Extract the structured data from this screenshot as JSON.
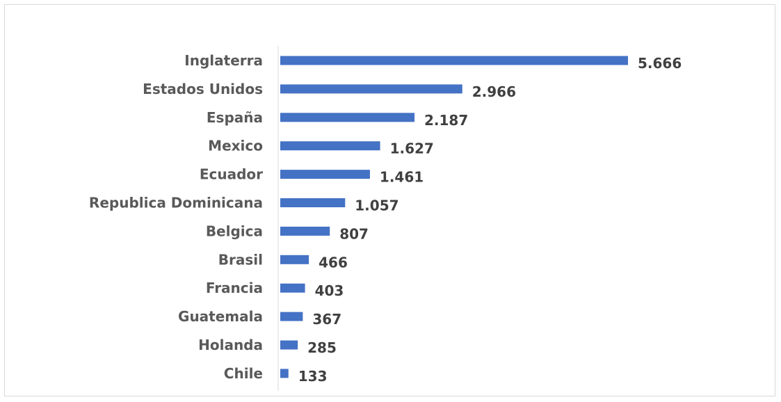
{
  "chart_data": {
    "type": "bar",
    "orientation": "horizontal",
    "title": "",
    "xlabel": "",
    "ylabel": "",
    "categories": [
      "Inglaterra",
      "Estados Unidos",
      "España",
      "Mexico",
      "Ecuador",
      "Republica Dominicana",
      "Belgica",
      "Brasil",
      "Francia",
      "Guatemala",
      "Holanda",
      "Chile"
    ],
    "values": [
      5666,
      2966,
      2187,
      1627,
      1461,
      1057,
      807,
      466,
      403,
      367,
      285,
      133
    ],
    "value_labels": [
      "5.666",
      "2.966",
      "2.187",
      "1.627",
      "1.461",
      "1.057",
      "807",
      "466",
      "403",
      "367",
      "285",
      "133"
    ],
    "xlim": [
      0,
      5666
    ],
    "grid": false,
    "legend": "none",
    "bar_color": "#4472C4",
    "axis_color": "#d9d9d9"
  }
}
